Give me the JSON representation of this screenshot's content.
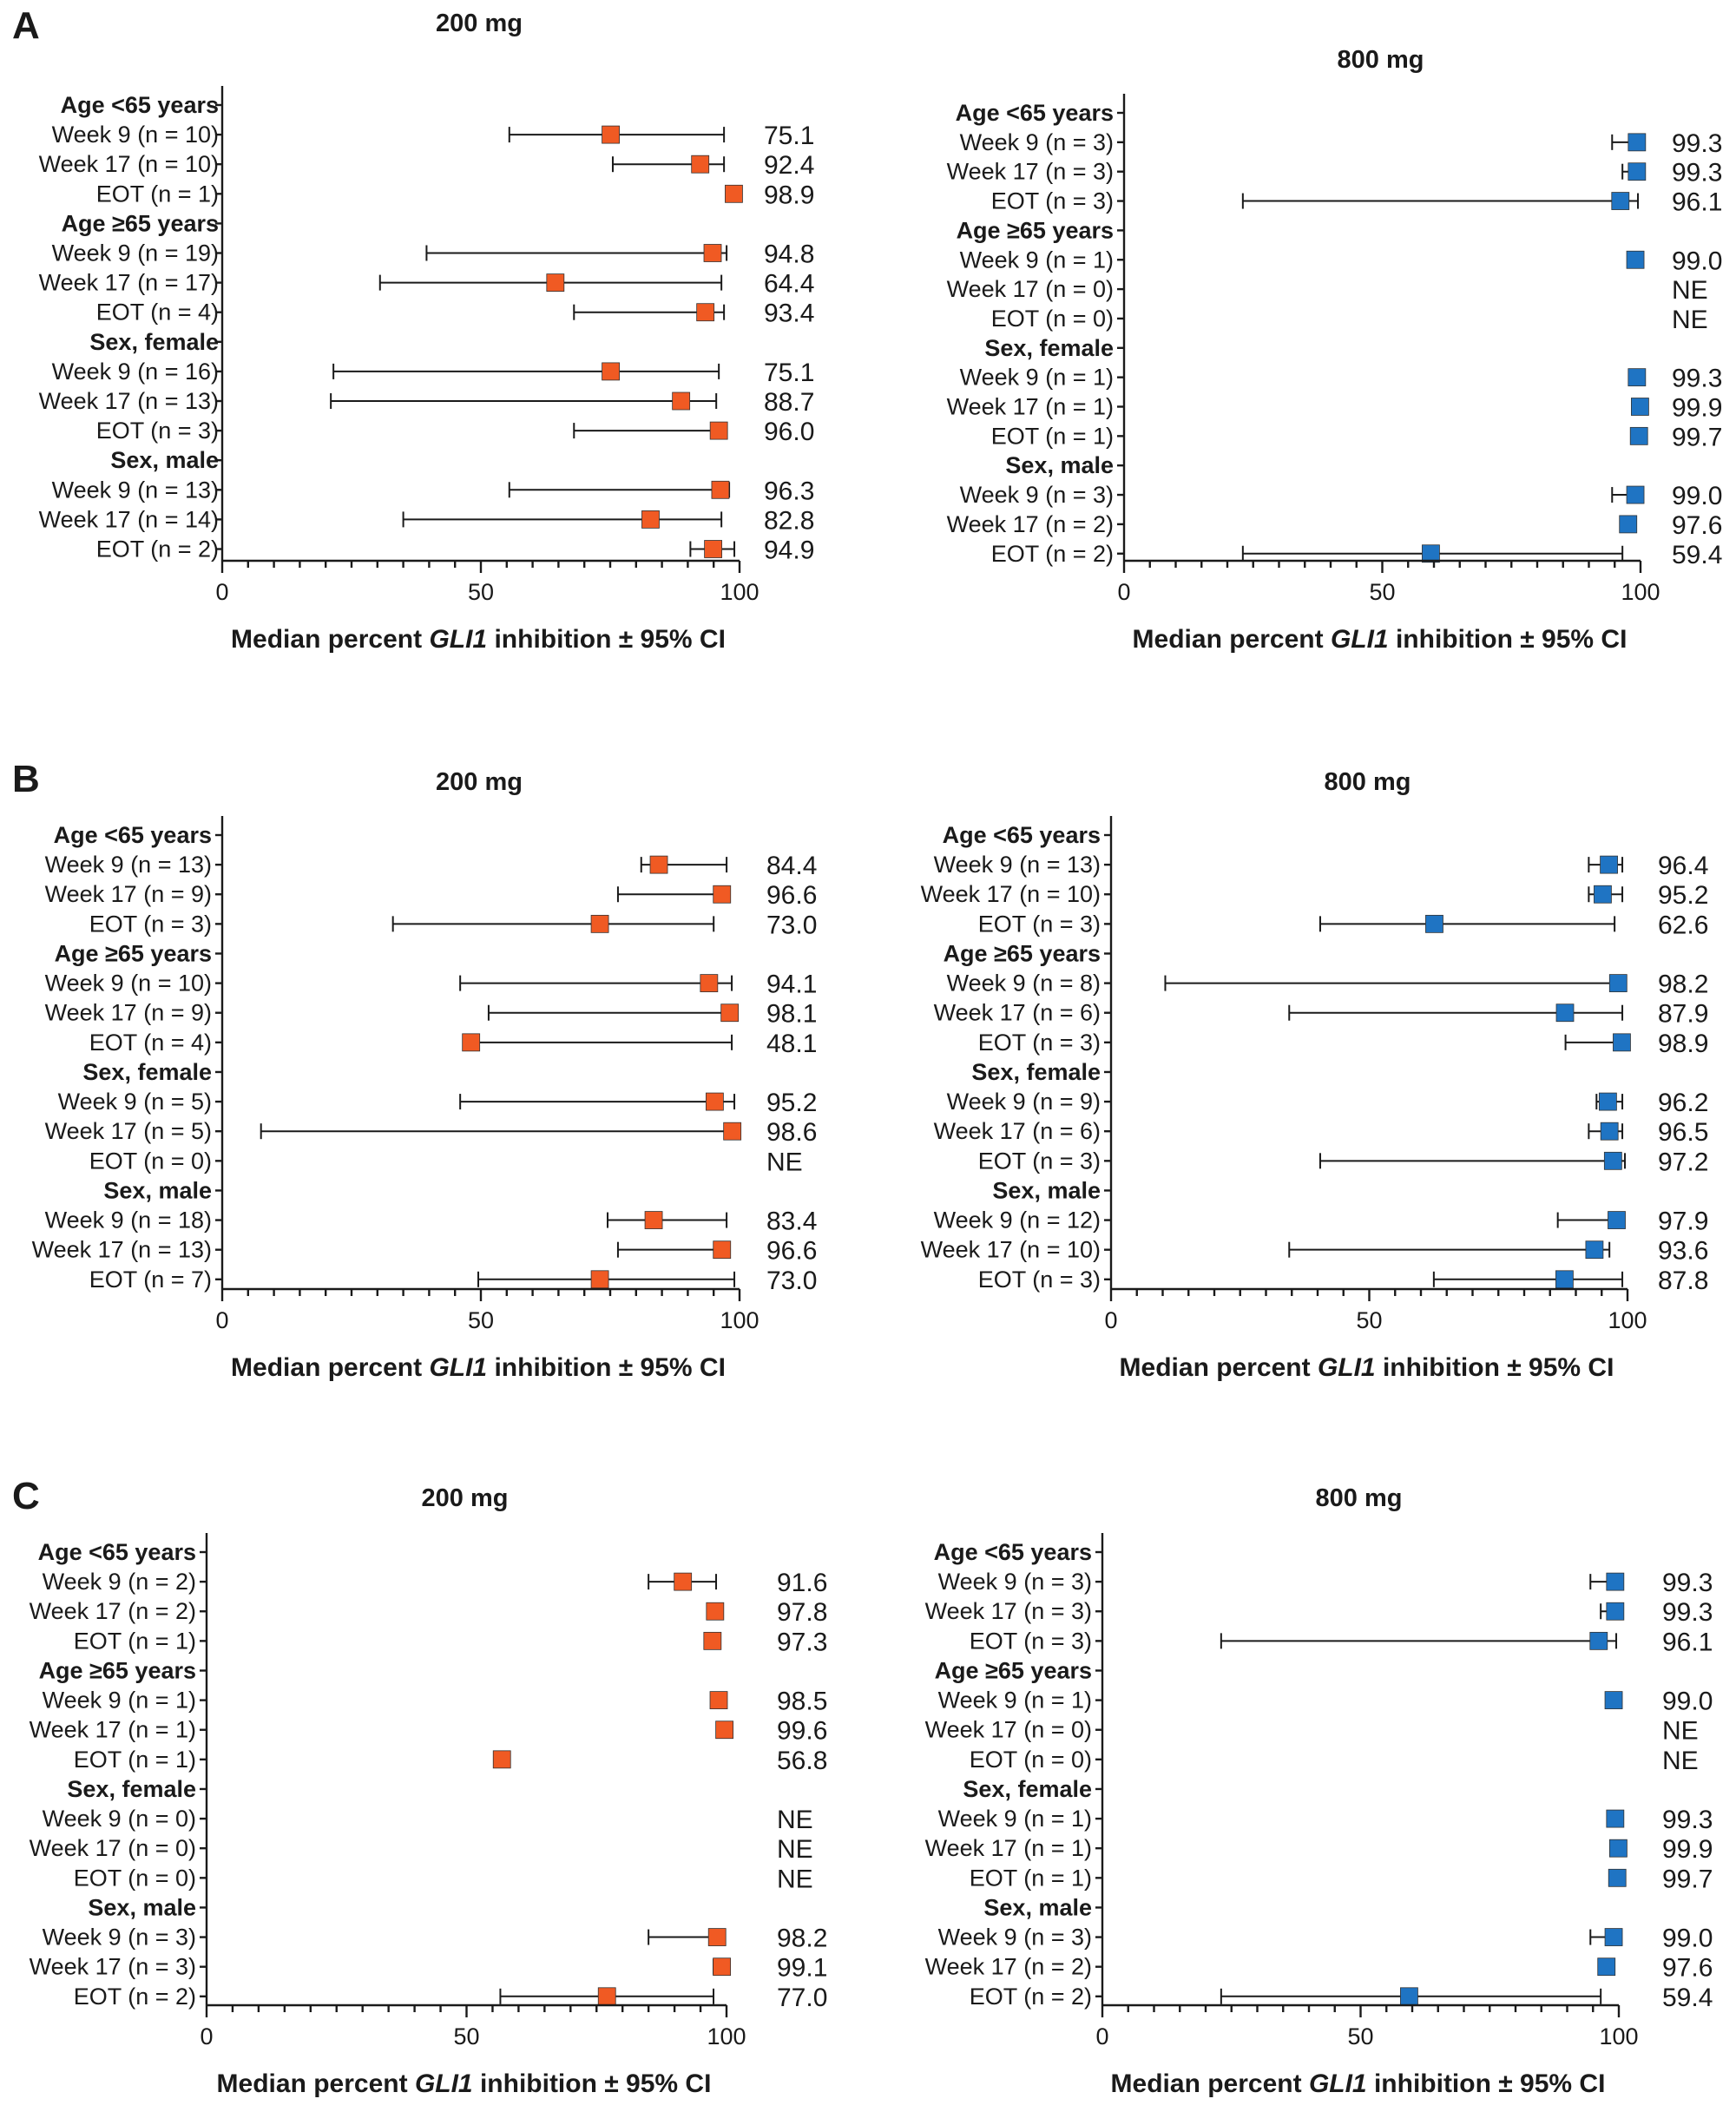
{
  "panels": [
    {
      "letter": "A"
    },
    {
      "letter": "B"
    },
    {
      "letter": "C"
    }
  ],
  "colors": {
    "200 mg": "#f05a23",
    "800 mg": "#1f74c3"
  },
  "chart_data": [
    {
      "panel": "A",
      "type": "forest",
      "title": "200 mg",
      "marker_color": "#f05a23",
      "xlabel_parts": [
        "Median percent ",
        "GLI1",
        " inhibition ± 95% CI"
      ],
      "xlim": [
        0,
        100
      ],
      "xticks": [
        0,
        50,
        100
      ],
      "groups": [
        {
          "label": "Age <65 years",
          "rows": [
            {
              "label": "Week 9 (n = 10)",
              "value": 75.1,
              "lo": 55.5,
              "hi": 97.0,
              "text": "75.1"
            },
            {
              "label": "Week 17 (n = 10)",
              "value": 92.4,
              "lo": 75.5,
              "hi": 97.0,
              "text": "92.4"
            },
            {
              "label": "EOT (n = 1)",
              "value": 98.9,
              "lo": null,
              "hi": null,
              "text": "98.9"
            }
          ]
        },
        {
          "label": "Age ≥65 years",
          "rows": [
            {
              "label": "Week 9 (n = 19)",
              "value": 94.8,
              "lo": 39.5,
              "hi": 97.5,
              "text": "94.8"
            },
            {
              "label": "Week 17 (n = 17)",
              "value": 64.4,
              "lo": 30.5,
              "hi": 96.5,
              "text": "64.4"
            },
            {
              "label": "EOT (n = 4)",
              "value": 93.4,
              "lo": 68.0,
              "hi": 97.0,
              "text": "93.4"
            }
          ]
        },
        {
          "label": "Sex, female",
          "rows": [
            {
              "label": "Week 9 (n = 16)",
              "value": 75.1,
              "lo": 21.5,
              "hi": 96.0,
              "text": "75.1"
            },
            {
              "label": "Week 17 (n = 13)",
              "value": 88.7,
              "lo": 21.0,
              "hi": 95.5,
              "text": "88.7"
            },
            {
              "label": "EOT (n = 3)",
              "value": 96.0,
              "lo": 68.0,
              "hi": 97.5,
              "text": "96.0"
            }
          ]
        },
        {
          "label": "Sex, male",
          "rows": [
            {
              "label": "Week 9 (n = 13)",
              "value": 96.3,
              "lo": 55.5,
              "hi": 98.0,
              "text": "96.3"
            },
            {
              "label": "Week 17 (n = 14)",
              "value": 82.8,
              "lo": 35.0,
              "hi": 96.5,
              "text": "82.8"
            },
            {
              "label": "EOT (n = 2)",
              "value": 94.9,
              "lo": 90.5,
              "hi": 99.0,
              "text": "94.9"
            }
          ]
        }
      ]
    },
    {
      "panel": "A",
      "type": "forest",
      "title": "800 mg",
      "marker_color": "#1f74c3",
      "xlabel_parts": [
        "Median percent ",
        "GLI1",
        " inhibition ± 95% CI"
      ],
      "xlim": [
        0,
        100
      ],
      "xticks": [
        0,
        50,
        100
      ],
      "groups": [
        {
          "label": "Age <65 years",
          "rows": [
            {
              "label": "Week 9 (n = 3)",
              "value": 99.3,
              "lo": 94.5,
              "hi": 100.0,
              "text": "99.3"
            },
            {
              "label": "Week 17 (n = 3)",
              "value": 99.3,
              "lo": 96.5,
              "hi": 100.0,
              "text": "99.3"
            },
            {
              "label": "EOT (n = 3)",
              "value": 96.1,
              "lo": 23.0,
              "hi": 99.5,
              "text": "96.1"
            }
          ]
        },
        {
          "label": "Age ≥65 years",
          "rows": [
            {
              "label": "Week 9 (n = 1)",
              "value": 99.0,
              "lo": null,
              "hi": null,
              "text": "99.0"
            },
            {
              "label": "Week 17 (n = 0)",
              "value": null,
              "lo": null,
              "hi": null,
              "text": "NE"
            },
            {
              "label": "EOT (n = 0)",
              "value": null,
              "lo": null,
              "hi": null,
              "text": "NE"
            }
          ]
        },
        {
          "label": "Sex, female",
          "rows": [
            {
              "label": "Week 9 (n = 1)",
              "value": 99.3,
              "lo": null,
              "hi": null,
              "text": "99.3"
            },
            {
              "label": "Week 17 (n = 1)",
              "value": 99.9,
              "lo": null,
              "hi": null,
              "text": "99.9"
            },
            {
              "label": "EOT (n = 1)",
              "value": 99.7,
              "lo": null,
              "hi": null,
              "text": "99.7"
            }
          ]
        },
        {
          "label": "Sex, male",
          "rows": [
            {
              "label": "Week 9 (n = 3)",
              "value": 99.0,
              "lo": 94.5,
              "hi": 100.0,
              "text": "99.0"
            },
            {
              "label": "Week 17 (n = 2)",
              "value": 97.6,
              "lo": null,
              "hi": null,
              "text": "97.6"
            },
            {
              "label": "EOT (n = 2)",
              "value": 59.4,
              "lo": 23.0,
              "hi": 96.5,
              "text": "59.4"
            }
          ]
        }
      ]
    },
    {
      "panel": "B",
      "type": "forest",
      "title": "200 mg",
      "marker_color": "#f05a23",
      "xlabel_parts": [
        "Median percent ",
        "GLI1",
        " inhibition ± 95% CI"
      ],
      "xlim": [
        0,
        100
      ],
      "xticks": [
        0,
        50,
        100
      ],
      "groups": [
        {
          "label": "Age <65 years",
          "rows": [
            {
              "label": "Week 9 (n = 13)",
              "value": 84.4,
              "lo": 81.0,
              "hi": 97.5,
              "text": "84.4"
            },
            {
              "label": "Week 17 (n = 9)",
              "value": 96.6,
              "lo": 76.5,
              "hi": 98.0,
              "text": "96.6"
            },
            {
              "label": "EOT (n = 3)",
              "value": 73.0,
              "lo": 33.0,
              "hi": 95.0,
              "text": "73.0"
            }
          ]
        },
        {
          "label": "Age ≥65 years",
          "rows": [
            {
              "label": "Week 9 (n = 10)",
              "value": 94.1,
              "lo": 46.0,
              "hi": 98.5,
              "text": "94.1"
            },
            {
              "label": "Week 17 (n = 9)",
              "value": 98.1,
              "lo": 51.5,
              "hi": 99.0,
              "text": "98.1"
            },
            {
              "label": "EOT (n = 4)",
              "value": 48.1,
              "lo": 48.0,
              "hi": 98.5,
              "text": "48.1"
            }
          ]
        },
        {
          "label": "Sex, female",
          "rows": [
            {
              "label": "Week 9 (n = 5)",
              "value": 95.2,
              "lo": 46.0,
              "hi": 99.0,
              "text": "95.2"
            },
            {
              "label": "Week 17 (n = 5)",
              "value": 98.6,
              "lo": 7.5,
              "hi": 99.0,
              "text": "98.6"
            },
            {
              "label": "EOT (n = 0)",
              "value": null,
              "lo": null,
              "hi": null,
              "text": "NE"
            }
          ]
        },
        {
          "label": "Sex, male",
          "rows": [
            {
              "label": "Week 9 (n = 18)",
              "value": 83.4,
              "lo": 74.5,
              "hi": 97.5,
              "text": "83.4"
            },
            {
              "label": "Week 17 (n = 13)",
              "value": 96.6,
              "lo": 76.5,
              "hi": 98.0,
              "text": "96.6"
            },
            {
              "label": "EOT (n = 7)",
              "value": 73.0,
              "lo": 49.5,
              "hi": 99.0,
              "text": "73.0"
            }
          ]
        }
      ]
    },
    {
      "panel": "B",
      "type": "forest",
      "title": "800 mg",
      "marker_color": "#1f74c3",
      "xlabel_parts": [
        "Median percent ",
        "GLI1",
        " inhibition ± 95% CI"
      ],
      "xlim": [
        0,
        100
      ],
      "xticks": [
        0,
        50,
        100
      ],
      "groups": [
        {
          "label": "Age <65 years",
          "rows": [
            {
              "label": "Week 9 (n = 13)",
              "value": 96.4,
              "lo": 92.5,
              "hi": 99.0,
              "text": "96.4"
            },
            {
              "label": "Week 17 (n = 10)",
              "value": 95.2,
              "lo": 92.5,
              "hi": 99.0,
              "text": "95.2"
            },
            {
              "label": "EOT (n = 3)",
              "value": 62.6,
              "lo": 40.5,
              "hi": 97.5,
              "text": "62.6"
            }
          ]
        },
        {
          "label": "Age ≥65 years",
          "rows": [
            {
              "label": "Week 9 (n = 8)",
              "value": 98.2,
              "lo": 10.5,
              "hi": 99.5,
              "text": "98.2"
            },
            {
              "label": "Week 17 (n = 6)",
              "value": 87.9,
              "lo": 34.5,
              "hi": 99.0,
              "text": "87.9"
            },
            {
              "label": "EOT (n = 3)",
              "value": 98.9,
              "lo": 88.0,
              "hi": 99.5,
              "text": "98.9"
            }
          ]
        },
        {
          "label": "Sex, female",
          "rows": [
            {
              "label": "Week 9 (n = 9)",
              "value": 96.2,
              "lo": 94.0,
              "hi": 99.0,
              "text": "96.2"
            },
            {
              "label": "Week 17 (n = 6)",
              "value": 96.5,
              "lo": 92.5,
              "hi": 99.0,
              "text": "96.5"
            },
            {
              "label": "EOT (n = 3)",
              "value": 97.2,
              "lo": 40.5,
              "hi": 99.5,
              "text": "97.2"
            }
          ]
        },
        {
          "label": "Sex, male",
          "rows": [
            {
              "label": "Week 9 (n = 12)",
              "value": 97.9,
              "lo": 86.5,
              "hi": 99.0,
              "text": "97.9"
            },
            {
              "label": "Week 17 (n = 10)",
              "value": 93.6,
              "lo": 34.5,
              "hi": 96.5,
              "text": "93.6"
            },
            {
              "label": "EOT (n = 3)",
              "value": 87.8,
              "lo": 62.5,
              "hi": 99.0,
              "text": "87.8"
            }
          ]
        }
      ]
    },
    {
      "panel": "C",
      "type": "forest",
      "title": "200 mg",
      "marker_color": "#f05a23",
      "xlabel_parts": [
        "Median percent ",
        "GLI1",
        " inhibition ± 95% CI"
      ],
      "xlim": [
        0,
        100
      ],
      "xticks": [
        0,
        50,
        100
      ],
      "groups": [
        {
          "label": "Age <65 years",
          "rows": [
            {
              "label": "Week 9 (n = 2)",
              "value": 91.6,
              "lo": 85.0,
              "hi": 98.0,
              "text": "91.6"
            },
            {
              "label": "Week 17 (n = 2)",
              "value": 97.8,
              "lo": null,
              "hi": null,
              "text": "97.8"
            },
            {
              "label": "EOT (n = 1)",
              "value": 97.3,
              "lo": null,
              "hi": null,
              "text": "97.3"
            }
          ]
        },
        {
          "label": "Age ≥65 years",
          "rows": [
            {
              "label": "Week 9 (n = 1)",
              "value": 98.5,
              "lo": null,
              "hi": null,
              "text": "98.5"
            },
            {
              "label": "Week 17 (n = 1)",
              "value": 99.6,
              "lo": null,
              "hi": null,
              "text": "99.6"
            },
            {
              "label": "EOT (n = 1)",
              "value": 56.8,
              "lo": null,
              "hi": null,
              "text": "56.8"
            }
          ]
        },
        {
          "label": "Sex, female",
          "rows": [
            {
              "label": "Week 9 (n = 0)",
              "value": null,
              "lo": null,
              "hi": null,
              "text": "NE"
            },
            {
              "label": "Week 17 (n = 0)",
              "value": null,
              "lo": null,
              "hi": null,
              "text": "NE"
            },
            {
              "label": "EOT (n = 0)",
              "value": null,
              "lo": null,
              "hi": null,
              "text": "NE"
            }
          ]
        },
        {
          "label": "Sex, male",
          "rows": [
            {
              "label": "Week 9 (n = 3)",
              "value": 98.2,
              "lo": 85.0,
              "hi": 99.5,
              "text": "98.2"
            },
            {
              "label": "Week 17 (n = 3)",
              "value": 99.1,
              "lo": 97.5,
              "hi": 100.0,
              "text": "99.1"
            },
            {
              "label": "EOT (n = 2)",
              "value": 77.0,
              "lo": 56.5,
              "hi": 97.5,
              "text": "77.0"
            }
          ]
        }
      ]
    },
    {
      "panel": "C",
      "type": "forest",
      "title": "800 mg",
      "marker_color": "#1f74c3",
      "xlabel_parts": [
        "Median percent ",
        "GLI1",
        " inhibition ± 95% CI"
      ],
      "xlim": [
        0,
        100
      ],
      "xticks": [
        0,
        50,
        100
      ],
      "groups": [
        {
          "label": "Age <65 years",
          "rows": [
            {
              "label": "Week 9 (n = 3)",
              "value": 99.3,
              "lo": 94.5,
              "hi": 100.0,
              "text": "99.3"
            },
            {
              "label": "Week 17 (n = 3)",
              "value": 99.3,
              "lo": 96.5,
              "hi": 100.0,
              "text": "99.3"
            },
            {
              "label": "EOT (n = 3)",
              "value": 96.1,
              "lo": 23.0,
              "hi": 99.5,
              "text": "96.1"
            }
          ]
        },
        {
          "label": "Age ≥65 years",
          "rows": [
            {
              "label": "Week 9 (n = 1)",
              "value": 99.0,
              "lo": null,
              "hi": null,
              "text": "99.0"
            },
            {
              "label": "Week 17 (n = 0)",
              "value": null,
              "lo": null,
              "hi": null,
              "text": "NE"
            },
            {
              "label": "EOT (n = 0)",
              "value": null,
              "lo": null,
              "hi": null,
              "text": "NE"
            }
          ]
        },
        {
          "label": "Sex, female",
          "rows": [
            {
              "label": "Week 9 (n = 1)",
              "value": 99.3,
              "lo": null,
              "hi": null,
              "text": "99.3"
            },
            {
              "label": "Week 17 (n = 1)",
              "value": 99.9,
              "lo": null,
              "hi": null,
              "text": "99.9"
            },
            {
              "label": "EOT (n = 1)",
              "value": 99.7,
              "lo": null,
              "hi": null,
              "text": "99.7"
            }
          ]
        },
        {
          "label": "Sex, male",
          "rows": [
            {
              "label": "Week 9 (n = 3)",
              "value": 99.0,
              "lo": 94.5,
              "hi": 100.0,
              "text": "99.0"
            },
            {
              "label": "Week 17 (n = 2)",
              "value": 97.6,
              "lo": null,
              "hi": null,
              "text": "97.6"
            },
            {
              "label": "EOT (n = 2)",
              "value": 59.4,
              "lo": 23.0,
              "hi": 96.5,
              "text": "59.4"
            }
          ]
        }
      ]
    }
  ]
}
